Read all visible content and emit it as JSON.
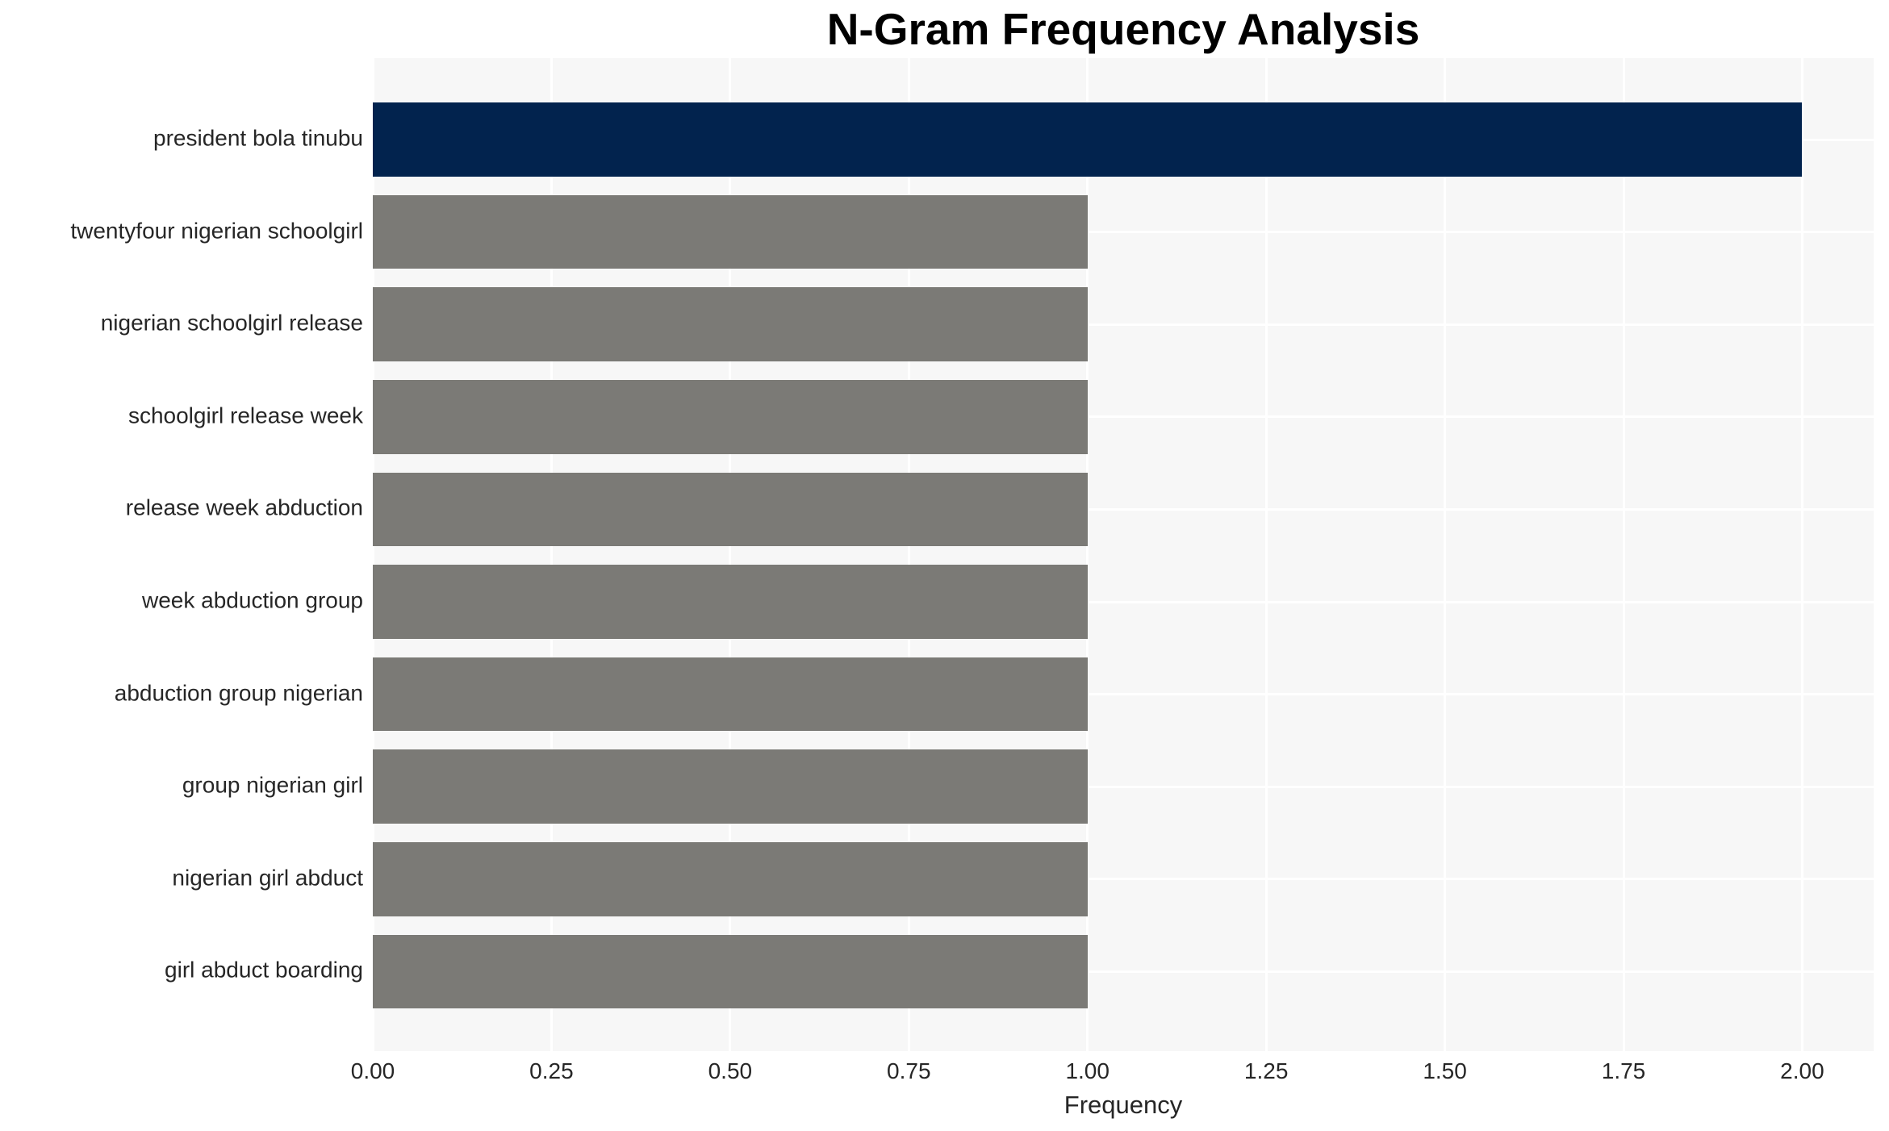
{
  "chart_data": {
    "type": "bar",
    "orientation": "horizontal",
    "title": "N-Gram Frequency Analysis",
    "xlabel": "Frequency",
    "ylabel": "",
    "categories": [
      "president bola tinubu",
      "twentyfour nigerian schoolgirl",
      "nigerian schoolgirl release",
      "schoolgirl release week",
      "release week abduction",
      "week abduction group",
      "abduction group nigerian",
      "group nigerian girl",
      "nigerian girl abduct",
      "girl abduct boarding"
    ],
    "values": [
      2,
      1,
      1,
      1,
      1,
      1,
      1,
      1,
      1,
      1
    ],
    "bar_colors": [
      "#02234e",
      "#7b7a76",
      "#7b7a76",
      "#7b7a76",
      "#7b7a76",
      "#7b7a76",
      "#7b7a76",
      "#7b7a76",
      "#7b7a76",
      "#7b7a76"
    ],
    "xlim": [
      0,
      2.1
    ],
    "xticks": [
      0.0,
      0.25,
      0.5,
      0.75,
      1.0,
      1.25,
      1.5,
      1.75,
      2.0
    ],
    "xtick_labels": [
      "0.00",
      "0.25",
      "0.50",
      "0.75",
      "1.00",
      "1.25",
      "1.50",
      "1.75",
      "2.00"
    ],
    "grid": true,
    "legend": "none",
    "plot_background_color": "#f7f7f7",
    "grid_color": "#ffffff",
    "text_color": "#262626",
    "title_color": "#000000"
  }
}
